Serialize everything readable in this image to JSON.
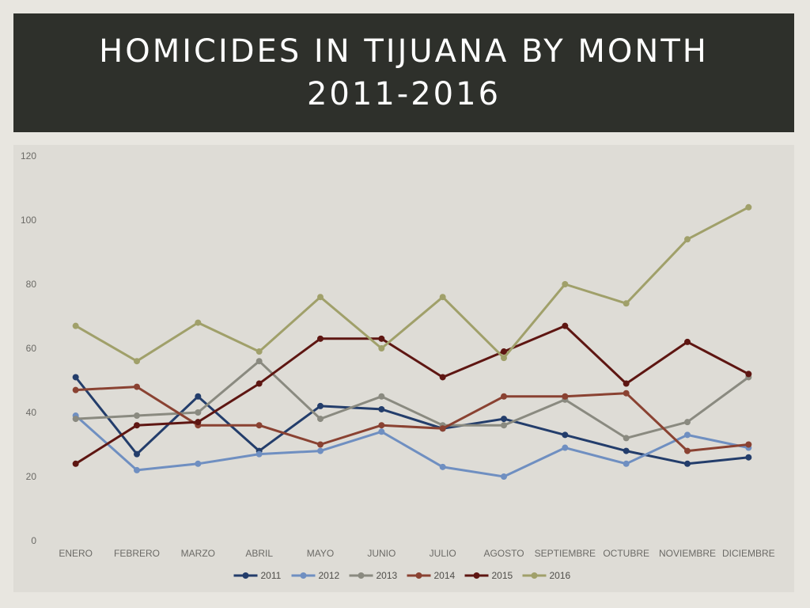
{
  "slide": {
    "title": "HOMICIDES IN TIJUANA BY MONTH 2011-2016"
  },
  "colors": {
    "title_bar": "#2e302b",
    "chart_bg": "#dedcd6",
    "slide_bg": "#e8e6e0"
  },
  "chart_data": {
    "type": "line",
    "title": "",
    "xlabel": "",
    "ylabel": "",
    "ylim": [
      0,
      120
    ],
    "yticks": [
      0,
      20,
      40,
      60,
      80,
      100,
      120
    ],
    "grid": false,
    "legend_position": "bottom",
    "categories": [
      "ENERO",
      "FEBRERO",
      "MARZO",
      "ABRIL",
      "MAYO",
      "JUNIO",
      "JULIO",
      "AGOSTO",
      "SEPTIEMBRE",
      "OCTUBRE",
      "NOVIEMBRE",
      "DICIEMBRE"
    ],
    "series": [
      {
        "name": "2011",
        "color": "#233d6b",
        "values": [
          51,
          27,
          45,
          28,
          42,
          41,
          35,
          38,
          33,
          28,
          24,
          26
        ]
      },
      {
        "name": "2012",
        "color": "#6f8fc1",
        "values": [
          39,
          22,
          24,
          27,
          28,
          34,
          23,
          20,
          29,
          24,
          33,
          29
        ]
      },
      {
        "name": "2013",
        "color": "#8a8a80",
        "values": [
          38,
          39,
          40,
          56,
          38,
          45,
          36,
          36,
          44,
          32,
          37,
          51
        ]
      },
      {
        "name": "2014",
        "color": "#8a4232",
        "values": [
          47,
          48,
          36,
          36,
          30,
          36,
          35,
          45,
          45,
          46,
          28,
          30
        ]
      },
      {
        "name": "2015",
        "color": "#5e1612",
        "values": [
          24,
          36,
          37,
          49,
          63,
          63,
          51,
          59,
          67,
          49,
          62,
          52
        ]
      },
      {
        "name": "2016",
        "color": "#a0a06a",
        "values": [
          67,
          56,
          68,
          59,
          76,
          60,
          76,
          57,
          80,
          74,
          94,
          104
        ]
      }
    ]
  }
}
